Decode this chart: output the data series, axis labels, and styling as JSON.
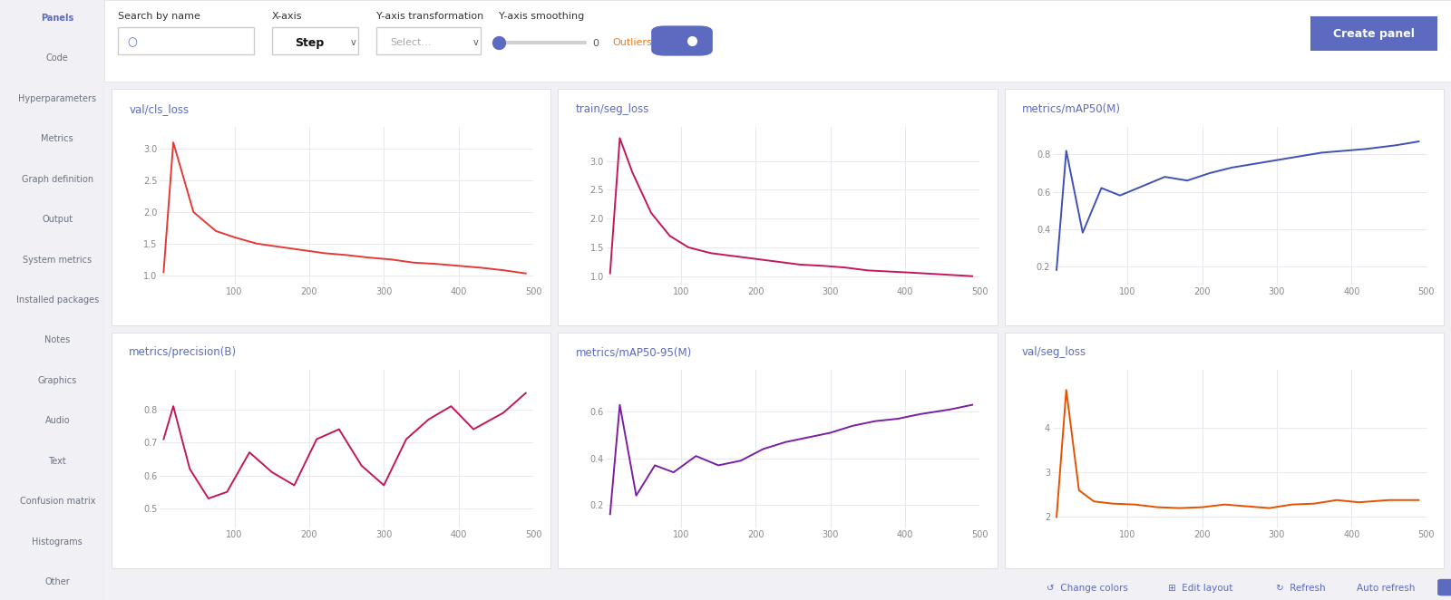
{
  "bg_color": "#f0f0f5",
  "panel_bg": "#ffffff",
  "sidebar_bg": "#f8f8fc",
  "charts": [
    {
      "title": "val/cls_loss",
      "color": "#e53935",
      "xlim": [
        0,
        500
      ],
      "xticks": [
        100,
        200,
        300,
        400,
        500
      ],
      "ylim": [
        0.85,
        3.35
      ],
      "yticks": [
        1.0,
        1.5,
        2.0,
        2.5,
        3.0
      ],
      "x": [
        5,
        18,
        45,
        75,
        100,
        130,
        160,
        190,
        220,
        250,
        280,
        310,
        340,
        370,
        400,
        430,
        460,
        490
      ],
      "y": [
        1.05,
        3.1,
        2.0,
        1.7,
        1.6,
        1.5,
        1.45,
        1.4,
        1.35,
        1.32,
        1.28,
        1.25,
        1.2,
        1.18,
        1.15,
        1.12,
        1.08,
        1.03
      ]
    },
    {
      "title": "train/seg_loss",
      "color": "#c2185b",
      "xlim": [
        0,
        500
      ],
      "xticks": [
        100,
        200,
        300,
        400,
        500
      ],
      "ylim": [
        0.85,
        3.6
      ],
      "yticks": [
        1.0,
        1.5,
        2.0,
        2.5,
        3.0
      ],
      "x": [
        5,
        18,
        35,
        60,
        85,
        110,
        140,
        170,
        200,
        230,
        260,
        290,
        320,
        350,
        380,
        410,
        450,
        490
      ],
      "y": [
        1.05,
        3.4,
        2.8,
        2.1,
        1.7,
        1.5,
        1.4,
        1.35,
        1.3,
        1.25,
        1.2,
        1.18,
        1.15,
        1.1,
        1.08,
        1.06,
        1.03,
        1.0
      ]
    },
    {
      "title": "metrics/mAP50(M)",
      "color": "#3f51b5",
      "xlim": [
        0,
        500
      ],
      "xticks": [
        100,
        200,
        300,
        400,
        500
      ],
      "ylim": [
        0.1,
        0.95
      ],
      "yticks": [
        0.2,
        0.4,
        0.6,
        0.8
      ],
      "x": [
        5,
        18,
        40,
        65,
        90,
        120,
        150,
        180,
        210,
        240,
        270,
        300,
        330,
        360,
        390,
        420,
        460,
        490
      ],
      "y": [
        0.18,
        0.82,
        0.38,
        0.62,
        0.58,
        0.63,
        0.68,
        0.66,
        0.7,
        0.73,
        0.75,
        0.77,
        0.79,
        0.81,
        0.82,
        0.83,
        0.85,
        0.87
      ]
    },
    {
      "title": "metrics/precision(B)",
      "color": "#c2185b",
      "xlim": [
        0,
        500
      ],
      "xticks": [
        100,
        200,
        300,
        400,
        500
      ],
      "ylim": [
        0.44,
        0.92
      ],
      "yticks": [
        0.5,
        0.6,
        0.7,
        0.8
      ],
      "x": [
        5,
        18,
        40,
        65,
        90,
        120,
        150,
        180,
        210,
        240,
        270,
        300,
        330,
        360,
        390,
        420,
        460,
        490
      ],
      "y": [
        0.71,
        0.81,
        0.62,
        0.53,
        0.55,
        0.67,
        0.61,
        0.57,
        0.71,
        0.74,
        0.63,
        0.57,
        0.71,
        0.77,
        0.81,
        0.74,
        0.79,
        0.85
      ]
    },
    {
      "title": "metrics/mAP50-95(M)",
      "color": "#7b1fa2",
      "xlim": [
        0,
        500
      ],
      "xticks": [
        100,
        200,
        300,
        400,
        500
      ],
      "ylim": [
        0.1,
        0.78
      ],
      "yticks": [
        0.2,
        0.4,
        0.6
      ],
      "x": [
        5,
        18,
        40,
        65,
        90,
        120,
        150,
        180,
        210,
        240,
        270,
        300,
        330,
        360,
        390,
        420,
        460,
        490
      ],
      "y": [
        0.16,
        0.63,
        0.24,
        0.37,
        0.34,
        0.41,
        0.37,
        0.39,
        0.44,
        0.47,
        0.49,
        0.51,
        0.54,
        0.56,
        0.57,
        0.59,
        0.61,
        0.63
      ]
    },
    {
      "title": "val/seg_loss",
      "color": "#e65100",
      "xlim": [
        0,
        500
      ],
      "xticks": [
        100,
        200,
        300,
        400,
        500
      ],
      "ylim": [
        1.75,
        5.3
      ],
      "yticks": [
        2.0,
        3.0,
        4.0
      ],
      "x": [
        5,
        18,
        35,
        55,
        80,
        110,
        140,
        170,
        200,
        230,
        260,
        290,
        320,
        350,
        380,
        410,
        450,
        490
      ],
      "y": [
        2.0,
        4.85,
        2.6,
        2.35,
        2.3,
        2.28,
        2.22,
        2.2,
        2.22,
        2.28,
        2.24,
        2.2,
        2.28,
        2.3,
        2.38,
        2.33,
        2.38,
        2.38
      ]
    }
  ],
  "sidebar_items": [
    {
      "label": "Panels",
      "active": true
    },
    {
      "label": "Code",
      "active": false
    },
    {
      "label": "Hyperparameters",
      "active": false
    },
    {
      "label": "Metrics",
      "active": false
    },
    {
      "label": "Graph definition",
      "active": false
    },
    {
      "label": "Output",
      "active": false
    },
    {
      "label": "System metrics",
      "active": false
    },
    {
      "label": "Installed packages",
      "active": false
    },
    {
      "label": "Notes",
      "active": false
    },
    {
      "label": "Graphics",
      "active": false
    },
    {
      "label": "Audio",
      "active": false
    },
    {
      "label": "Text",
      "active": false
    },
    {
      "label": "Confusion matrix",
      "active": false
    },
    {
      "label": "Histograms",
      "active": false
    },
    {
      "label": "Other",
      "active": false
    }
  ],
  "active_color": "#5c6bc0",
  "inactive_color": "#6b7280",
  "title_color": "#5c6bc0",
  "grid_color": "#e8e8ee",
  "tick_color": "#888888",
  "card_border_color": "#e0e0e8"
}
